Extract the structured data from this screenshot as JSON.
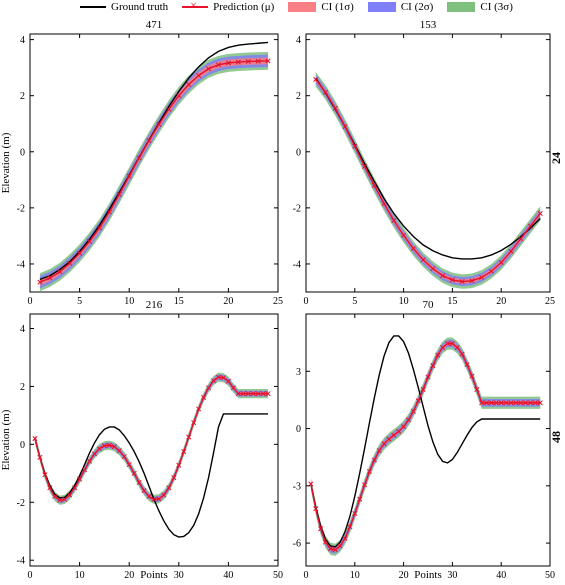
{
  "legend": {
    "ground_truth": "Ground truth",
    "prediction": "Prediction (μ)",
    "ci1": "CI (1σ)",
    "ci2": "CI (2σ)",
    "ci3": "CI (3σ)"
  },
  "colors": {
    "ground_truth": "#000000",
    "prediction": "#e8102a",
    "ci1": "#f77f85",
    "ci2": "#7f7ff7",
    "ci3": "#7fc07f"
  },
  "row_labels": [
    "24",
    "48"
  ],
  "chart_data": [
    {
      "type": "line",
      "title": "471",
      "xlabel": "",
      "ylabel": "Elevation (m)",
      "xlim": [
        0,
        25
      ],
      "ylim": [
        -5,
        4.2
      ],
      "xticks": [
        0,
        5,
        10,
        15,
        20,
        25
      ],
      "yticks": [
        -4,
        -2,
        0,
        2,
        4
      ],
      "x_start": 1,
      "ground_truth": [
        -4.55,
        -4.42,
        -4.2,
        -3.92,
        -3.55,
        -3.12,
        -2.62,
        -2.05,
        -1.45,
        -0.83,
        -0.2,
        0.42,
        1.03,
        1.62,
        2.15,
        2.63,
        3.03,
        3.35,
        3.58,
        3.72,
        3.8,
        3.84,
        3.87,
        3.9
      ],
      "prediction": [
        -4.65,
        -4.5,
        -4.28,
        -3.98,
        -3.62,
        -3.2,
        -2.72,
        -2.15,
        -1.52,
        -0.87,
        -0.22,
        0.4,
        0.98,
        1.52,
        2.0,
        2.4,
        2.72,
        2.96,
        3.1,
        3.17,
        3.2,
        3.22,
        3.23,
        3.24
      ],
      "ci_half_width": [
        0.12,
        0.22,
        0.32
      ]
    },
    {
      "type": "line",
      "title": "153",
      "xlabel": "",
      "ylabel": "",
      "xlim": [
        0,
        25
      ],
      "ylim": [
        -5,
        4.2
      ],
      "xticks": [
        0,
        5,
        10,
        15,
        20,
        25
      ],
      "yticks": [
        -4,
        -2,
        0,
        2,
        4
      ],
      "x_start": 1,
      "ground_truth": [
        2.62,
        2.1,
        1.52,
        0.9,
        0.25,
        -0.42,
        -1.06,
        -1.67,
        -2.2,
        -2.65,
        -3.02,
        -3.32,
        -3.53,
        -3.68,
        -3.78,
        -3.82,
        -3.82,
        -3.78,
        -3.68,
        -3.52,
        -3.3,
        -3.03,
        -2.72,
        -2.38
      ],
      "prediction": [
        2.58,
        2.12,
        1.55,
        0.9,
        0.2,
        -0.52,
        -1.2,
        -1.85,
        -2.45,
        -2.98,
        -3.45,
        -3.85,
        -4.17,
        -4.42,
        -4.57,
        -4.63,
        -4.6,
        -4.48,
        -4.26,
        -3.95,
        -3.55,
        -3.1,
        -2.65,
        -2.2
      ],
      "ci_half_width": [
        0.08,
        0.16,
        0.26
      ]
    },
    {
      "type": "line",
      "title": "216",
      "xlabel": "Points",
      "ylabel": "Elevation (m)",
      "xlim": [
        0,
        50
      ],
      "ylim": [
        -4.2,
        4.5
      ],
      "xticks": [
        0,
        10,
        20,
        30,
        40,
        50
      ],
      "yticks": [
        -4,
        -2,
        0,
        2,
        4
      ],
      "x_start": 1,
      "ground_truth": [
        0.2,
        -0.45,
        -1.0,
        -1.42,
        -1.72,
        -1.85,
        -1.83,
        -1.67,
        -1.42,
        -1.08,
        -0.7,
        -0.3,
        0.05,
        0.33,
        0.52,
        0.6,
        0.6,
        0.5,
        0.3,
        0.05,
        -0.25,
        -0.6,
        -1.0,
        -1.45,
        -1.9,
        -2.3,
        -2.65,
        -2.93,
        -3.12,
        -3.2,
        -3.18,
        -3.05,
        -2.8,
        -2.4,
        -1.85,
        -1.15,
        -0.3,
        0.6,
        1.05,
        1.05,
        1.05,
        1.05,
        1.05,
        1.05,
        1.05,
        1.05,
        1.05,
        1.05
      ],
      "prediction": [
        0.2,
        -0.45,
        -1.05,
        -1.5,
        -1.8,
        -1.93,
        -1.9,
        -1.75,
        -1.5,
        -1.2,
        -0.88,
        -0.58,
        -0.33,
        -0.15,
        -0.05,
        -0.03,
        -0.08,
        -0.22,
        -0.42,
        -0.7,
        -1.0,
        -1.32,
        -1.6,
        -1.8,
        -1.9,
        -1.88,
        -1.75,
        -1.5,
        -1.15,
        -0.72,
        -0.25,
        0.25,
        0.75,
        1.22,
        1.62,
        1.95,
        2.2,
        2.32,
        2.3,
        2.18,
        1.95,
        1.75,
        1.75,
        1.75,
        1.75,
        1.75,
        1.75,
        1.75
      ],
      "ci_half_width": [
        0.05,
        0.1,
        0.16
      ]
    },
    {
      "type": "line",
      "title": "70",
      "xlabel": "Points",
      "ylabel": "",
      "xlim": [
        0,
        50
      ],
      "ylim": [
        -7.2,
        6
      ],
      "xticks": [
        0,
        10,
        20,
        30,
        40,
        50
      ],
      "yticks": [
        -6,
        -3,
        0,
        3
      ],
      "x_start": 1,
      "ground_truth": [
        -2.9,
        -4.1,
        -5.1,
        -5.8,
        -6.15,
        -6.2,
        -5.95,
        -5.4,
        -4.6,
        -3.55,
        -2.35,
        -1.05,
        0.3,
        1.6,
        2.8,
        3.8,
        4.5,
        4.85,
        4.85,
        4.55,
        3.95,
        3.1,
        2.15,
        1.15,
        0.15,
        -0.7,
        -1.35,
        -1.72,
        -1.8,
        -1.62,
        -1.25,
        -0.8,
        -0.35,
        0.05,
        0.35,
        0.5,
        0.5,
        0.5,
        0.5,
        0.5,
        0.5,
        0.5,
        0.5,
        0.5,
        0.5,
        0.5,
        0.5,
        0.5
      ],
      "prediction": [
        -2.9,
        -4.2,
        -5.25,
        -5.95,
        -6.3,
        -6.35,
        -6.15,
        -5.75,
        -5.15,
        -4.45,
        -3.7,
        -2.95,
        -2.25,
        -1.65,
        -1.15,
        -0.8,
        -0.55,
        -0.35,
        -0.15,
        0.1,
        0.45,
        0.9,
        1.45,
        2.05,
        2.7,
        3.3,
        3.85,
        4.25,
        4.45,
        4.45,
        4.25,
        3.9,
        3.35,
        2.75,
        2.05,
        1.35,
        1.35,
        1.35,
        1.35,
        1.35,
        1.35,
        1.35,
        1.35,
        1.35,
        1.35,
        1.35,
        1.35,
        1.35
      ],
      "ci_half_width": [
        0.1,
        0.2,
        0.32
      ]
    }
  ]
}
